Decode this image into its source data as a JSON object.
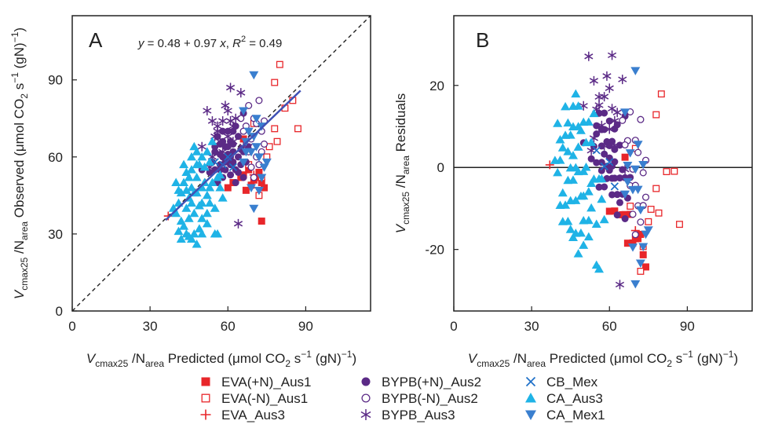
{
  "chart_data": [
    {
      "panel": "A",
      "type": "scatter",
      "equation": {
        "intercept": 0.48,
        "slope": 0.97,
        "r2": 0.49
      },
      "equation_parts": {
        "y": "y",
        "eq": " = 0.48 + 0.97 ",
        "x": "x",
        "sep": ",  ",
        "r": "R",
        "sup": "2",
        "val": " = 0.49"
      },
      "xlim": [
        0,
        115
      ],
      "ylim": [
        0,
        115
      ],
      "xticks": [
        0,
        30,
        60,
        90
      ],
      "yticks": [
        0,
        30,
        60,
        90
      ],
      "xlabel": {
        "pre": "V",
        "sub1": "cmax25",
        "mid": " /N",
        "sub2": "area",
        "post": " Predicted (μmol CO",
        "sub3": "2",
        "post2": " s",
        "sup1": "−1",
        "post3": " (gN)",
        "sup2": "−1",
        "post4": ")"
      },
      "ylabel": {
        "pre": "V",
        "sub1": "cmax25",
        "mid": " /N",
        "sub2": "area",
        "post": " Observed (μmol CO",
        "sub3": "2",
        "post2": " s",
        "sup1": "−1",
        "post3": " (gN)",
        "sup2": "−1",
        "post4": ")"
      },
      "reference_line": "1:1 dashed",
      "fit_line": {
        "x": [
          36,
          88
        ],
        "color": "#3f51b5"
      }
    },
    {
      "panel": "B",
      "type": "scatter",
      "xlim": [
        0,
        115
      ],
      "ylim": [
        -35,
        37
      ],
      "xticks": [
        0,
        30,
        60,
        90
      ],
      "yticks": [
        -20,
        0,
        20
      ],
      "xlabel": {
        "pre": "V",
        "sub1": "cmax25",
        "mid": " /N",
        "sub2": "area",
        "post": " Predicted (μmol CO",
        "sub3": "2",
        "post2": " s",
        "sup1": "−1",
        "post3": " (gN)",
        "sup2": "−1",
        "post4": ")"
      },
      "ylabel": {
        "pre": "V",
        "sub1": "cmax25",
        "mid": " /N",
        "sub2": "area",
        "post": " Residuals"
      },
      "zero_line": true
    }
  ],
  "series": [
    {
      "name": "EVA(+N)_Aus1",
      "marker": "square-filled",
      "color": "#e8262a",
      "points": [
        [
          66,
          67
        ],
        [
          72,
          54
        ],
        [
          73,
          50
        ],
        [
          74,
          48
        ],
        [
          70,
          51
        ],
        [
          62,
          50
        ],
        [
          65,
          52
        ],
        [
          60,
          48
        ],
        [
          73,
          35
        ],
        [
          71,
          52
        ],
        [
          68,
          55
        ],
        [
          67,
          47
        ],
        [
          69,
          49
        ],
        [
          66,
          53
        ]
      ]
    },
    {
      "name": "EVA(-N)_Aus1",
      "marker": "square-open",
      "color": "#e8262a",
      "points": [
        [
          80,
          96
        ],
        [
          78,
          89
        ],
        [
          85,
          82
        ],
        [
          78,
          71
        ],
        [
          87,
          71
        ],
        [
          79,
          66
        ],
        [
          75,
          60
        ],
        [
          73,
          52
        ],
        [
          72,
          45
        ],
        [
          68,
          57
        ],
        [
          70,
          73
        ],
        [
          82,
          79
        ],
        [
          76,
          64
        ]
      ]
    },
    {
      "name": "EVA_Aus3",
      "marker": "plus",
      "color": "#e8262a",
      "points": [
        [
          37,
          37
        ],
        [
          70,
          53
        ]
      ]
    },
    {
      "name": "BYPB(+N)_Aus2",
      "marker": "circle-filled",
      "color": "#5b2a86",
      "points": [
        [
          55,
          62
        ],
        [
          57,
          65
        ],
        [
          58,
          60
        ],
        [
          59,
          55
        ],
        [
          60,
          70
        ],
        [
          61,
          66
        ],
        [
          62,
          58
        ],
        [
          63,
          72
        ],
        [
          64,
          60
        ],
        [
          65,
          63
        ],
        [
          66,
          77
        ],
        [
          57,
          57
        ],
        [
          58,
          52
        ],
        [
          60,
          61
        ],
        [
          62,
          65
        ],
        [
          63,
          55
        ],
        [
          55,
          55
        ],
        [
          54,
          58
        ],
        [
          56,
          68
        ],
        [
          59,
          64
        ],
        [
          61,
          60
        ],
        [
          64,
          68
        ],
        [
          65,
          57
        ],
        [
          66,
          62
        ],
        [
          60,
          58
        ],
        [
          58,
          70
        ],
        [
          62,
          62
        ],
        [
          57,
          61
        ],
        [
          53,
          54
        ],
        [
          50,
          55
        ],
        [
          56,
          50
        ],
        [
          63,
          50
        ],
        [
          67,
          58
        ],
        [
          61,
          53
        ],
        [
          59,
          58
        ],
        [
          64,
          54
        ],
        [
          68,
          64
        ],
        [
          55,
          64
        ],
        [
          57,
          55
        ],
        [
          62,
          70
        ],
        [
          60,
          64
        ],
        [
          66,
          52
        ],
        [
          58,
          66
        ],
        [
          61,
          57
        ]
      ]
    },
    {
      "name": "BYPB(-N)_Aus2",
      "marker": "circle-open",
      "color": "#5b2a86",
      "points": [
        [
          72,
          82
        ],
        [
          68,
          80
        ],
        [
          70,
          75
        ],
        [
          73,
          70
        ],
        [
          74,
          65
        ],
        [
          71,
          60
        ],
        [
          69,
          67
        ],
        [
          67,
          72
        ],
        [
          70,
          52
        ],
        [
          72,
          57
        ],
        [
          68,
          62
        ],
        [
          71,
          73
        ],
        [
          66,
          70
        ],
        [
          73,
          62
        ],
        [
          69,
          56
        ],
        [
          70,
          64
        ],
        [
          65,
          75
        ],
        [
          74,
          74
        ]
      ]
    },
    {
      "name": "BYPB_Aus3",
      "marker": "asterisk",
      "color": "#5b2a86",
      "points": [
        [
          52,
          78
        ],
        [
          61,
          87
        ],
        [
          56,
          70
        ],
        [
          58,
          74
        ],
        [
          60,
          68
        ],
        [
          62,
          72
        ],
        [
          54,
          60
        ],
        [
          59,
          80
        ],
        [
          63,
          75
        ],
        [
          57,
          66
        ],
        [
          65,
          85
        ],
        [
          55,
          68
        ],
        [
          64,
          34
        ],
        [
          66,
          64
        ],
        [
          53,
          56
        ],
        [
          58,
          62
        ],
        [
          61,
          74
        ],
        [
          56,
          72
        ],
        [
          60,
          78
        ],
        [
          62,
          66
        ],
        [
          50,
          64
        ],
        [
          54,
          74
        ]
      ]
    },
    {
      "name": "CB_Mex",
      "marker": "x",
      "color": "#1e6fc8",
      "points": [
        [
          60,
          60
        ],
        [
          58,
          57
        ],
        [
          62,
          56
        ],
        [
          55,
          58
        ]
      ]
    },
    {
      "name": "CA_Aus3",
      "marker": "triangle-up",
      "color": "#1fb3e6",
      "points": [
        [
          40,
          38
        ],
        [
          42,
          35
        ],
        [
          44,
          40
        ],
        [
          45,
          44
        ],
        [
          47,
          46
        ],
        [
          48,
          52
        ],
        [
          50,
          48
        ],
        [
          43,
          50
        ],
        [
          46,
          55
        ],
        [
          41,
          42
        ],
        [
          44,
          30
        ],
        [
          46,
          28
        ],
        [
          49,
          32
        ],
        [
          42,
          28
        ],
        [
          47,
          38
        ],
        [
          50,
          42
        ],
        [
          45,
          52
        ],
        [
          48,
          57
        ],
        [
          43,
          57
        ],
        [
          52,
          45
        ],
        [
          51,
          50
        ],
        [
          53,
          48
        ],
        [
          46,
          48
        ],
        [
          40,
          50
        ],
        [
          44,
          47
        ],
        [
          49,
          41
        ],
        [
          47,
          30
        ],
        [
          48,
          26
        ],
        [
          50,
          30
        ],
        [
          41,
          31
        ],
        [
          52,
          38
        ],
        [
          56,
          30
        ],
        [
          55,
          40
        ],
        [
          58,
          44
        ],
        [
          50,
          60
        ],
        [
          48,
          62
        ],
        [
          52,
          62
        ],
        [
          54,
          66
        ],
        [
          56,
          52
        ],
        [
          57,
          48
        ],
        [
          53,
          42
        ],
        [
          45,
          36
        ],
        [
          39,
          40
        ],
        [
          55,
          30
        ],
        [
          42,
          46
        ],
        [
          46,
          60
        ],
        [
          51,
          56
        ],
        [
          54,
          50
        ],
        [
          47,
          64
        ],
        [
          49,
          57
        ],
        [
          43,
          33
        ],
        [
          45,
          29
        ],
        [
          44,
          54
        ],
        [
          50,
          36
        ],
        [
          53,
          58
        ],
        [
          57,
          53
        ],
        [
          52,
          34
        ],
        [
          48,
          46
        ],
        [
          46,
          42
        ],
        [
          41,
          47
        ]
      ]
    },
    {
      "name": "CA_Mex1",
      "marker": "triangle-down",
      "color": "#3a7fcf",
      "points": [
        [
          70,
          92
        ],
        [
          66,
          78
        ],
        [
          71,
          75
        ],
        [
          73,
          72
        ],
        [
          69,
          62
        ],
        [
          70,
          40
        ],
        [
          72,
          60
        ],
        [
          74,
          56
        ],
        [
          67,
          66
        ],
        [
          68,
          70
        ],
        [
          71,
          64
        ],
        [
          73,
          52
        ],
        [
          66,
          58
        ],
        [
          75,
          58
        ],
        [
          69,
          48
        ],
        [
          72,
          47
        ],
        [
          70,
          68
        ],
        [
          67,
          62
        ]
      ]
    }
  ],
  "legend": {
    "col1": [
      "EVA(+N)_Aus1",
      "EVA(-N)_Aus1",
      "EVA_Aus3"
    ],
    "col2": [
      "BYPB(+N)_Aus2",
      "BYPB(-N)_Aus2",
      "BYPB_Aus3"
    ],
    "col3": [
      "CB_Mex",
      "CA_Aus3",
      "CA_Mex1"
    ]
  }
}
